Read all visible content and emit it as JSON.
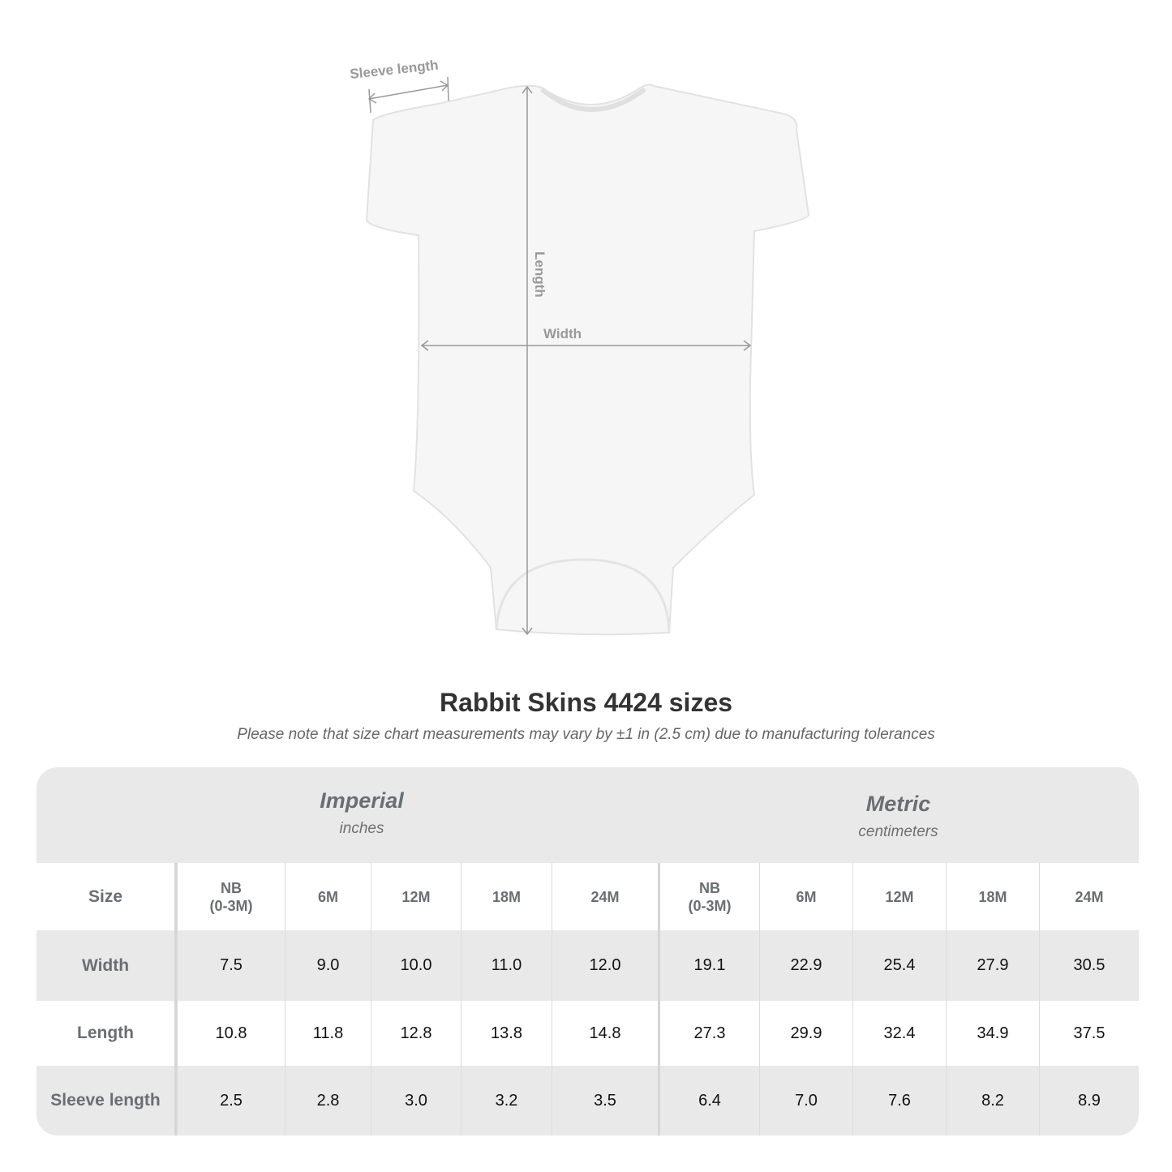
{
  "diagram": {
    "labels": {
      "sleeve": "Sleeve length",
      "length": "Length",
      "width": "Width"
    }
  },
  "title": "Rabbit Skins 4424 sizes",
  "note": "Please note that size chart measurements may vary by ±1 in (2.5 cm) due to manufacturing tolerances",
  "table": {
    "imperial": {
      "system": "Imperial",
      "unit": "inches"
    },
    "metric": {
      "system": "Metric",
      "unit": "centimeters"
    },
    "size_label": "Size",
    "sizes": [
      "NB\n(0-3M)",
      "6M",
      "12M",
      "18M",
      "24M",
      "NB\n(0-3M)",
      "6M",
      "12M",
      "18M",
      "24M"
    ],
    "rows": [
      {
        "label": "Width",
        "values": [
          "7.5",
          "9.0",
          "10.0",
          "11.0",
          "12.0",
          "19.1",
          "22.9",
          "25.4",
          "27.9",
          "30.5"
        ]
      },
      {
        "label": "Length",
        "values": [
          "10.8",
          "11.8",
          "12.8",
          "13.8",
          "14.8",
          "27.3",
          "29.9",
          "32.4",
          "34.9",
          "37.5"
        ]
      },
      {
        "label": "Sleeve length",
        "values": [
          "2.5",
          "2.8",
          "3.0",
          "3.2",
          "3.5",
          "6.4",
          "7.0",
          "7.6",
          "8.2",
          "8.9"
        ]
      }
    ]
  }
}
